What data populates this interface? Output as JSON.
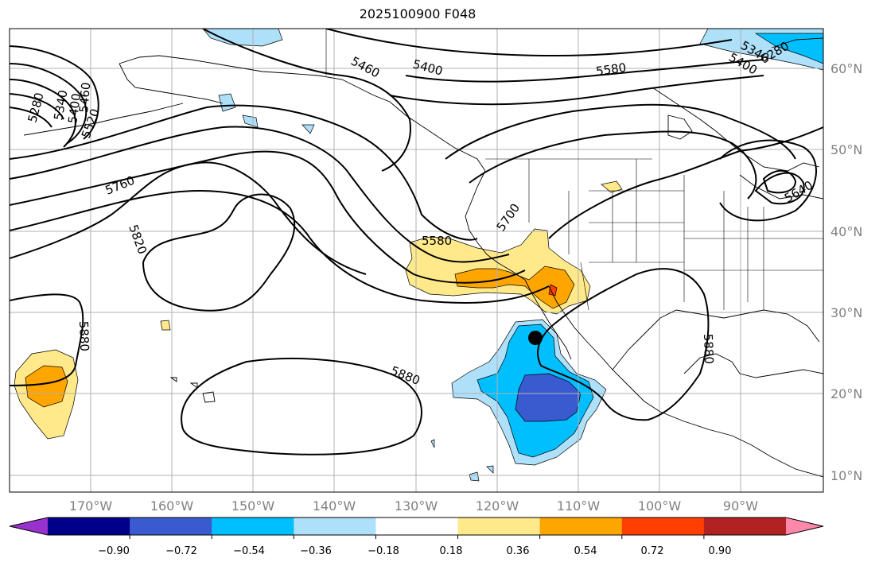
{
  "title": "2025100900 F048",
  "latitude_labels": [
    "60°N",
    "50°N",
    "40°N",
    "30°N",
    "20°N",
    "10°N"
  ],
  "longitude_labels": [
    "170°W",
    "160°W",
    "150°W",
    "140°W",
    "130°W",
    "120°W",
    "110°W",
    "100°W",
    "90°W"
  ],
  "contour_labels": [
    "5280",
    "5340",
    "5400",
    "5460",
    "5520",
    "5460",
    "5400",
    "5580",
    "5280",
    "5340",
    "5400",
    "5640",
    "5760",
    "5820",
    "5700",
    "5580",
    "5880",
    "5880",
    "5880"
  ],
  "colorbar": {
    "tick_labels": [
      "−0.90",
      "−0.72",
      "−0.54",
      "−0.36",
      "−0.18",
      "0.18",
      "0.36",
      "0.54",
      "0.72",
      "0.90"
    ],
    "colors": [
      "#9932cc",
      "#00008b",
      "#3a5bcf",
      "#00bfff",
      "#aee0fa",
      "#ffffff",
      "#ffe98a",
      "#ffa500",
      "#ff3f00",
      "#b22222",
      "#ff88aa"
    ]
  },
  "marker": "storm-center-dot",
  "colors": {
    "contour": "#000000",
    "grid": "#b0b0b0",
    "coast": "#000000",
    "axis_label": "#808080"
  }
}
